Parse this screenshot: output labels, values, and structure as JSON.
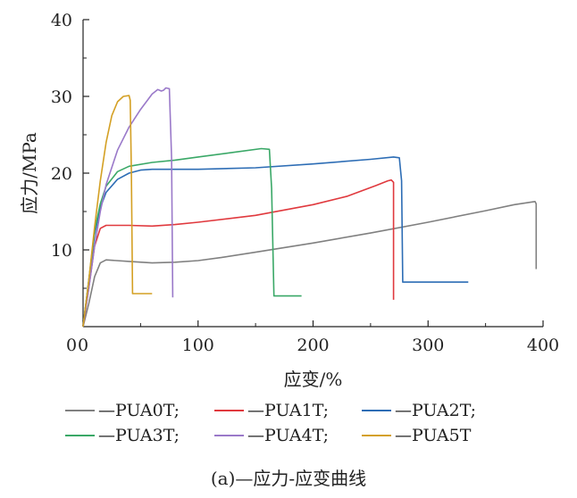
{
  "chart_data": {
    "type": "line",
    "xlabel": "应变/%",
    "ylabel": "应力/MPa",
    "xlim": [
      0,
      400
    ],
    "ylim": [
      0,
      40
    ],
    "xticks": [
      "0",
      "100",
      "200",
      "300",
      "400"
    ],
    "yticks": [
      "10",
      "20",
      "30",
      "40"
    ],
    "grid": false,
    "legend_position": "bottom",
    "caption": "(a)—应力-应变曲线",
    "series": [
      {
        "name": "—PUA0T;",
        "color": "#808080",
        "x": [
          0,
          5,
          10,
          15,
          20,
          40,
          60,
          80,
          100,
          120,
          150,
          200,
          250,
          300,
          350,
          375,
          393,
          394,
          394
        ],
        "y": [
          0,
          3,
          6.5,
          8.3,
          8.7,
          8.5,
          8.3,
          8.4,
          8.6,
          9.0,
          9.7,
          10.9,
          12.2,
          13.6,
          15.1,
          15.9,
          16.3,
          16.0,
          7.5
        ]
      },
      {
        "name": "—PUA1T;",
        "color": "#e0393e",
        "x": [
          0,
          5,
          10,
          15,
          20,
          40,
          60,
          80,
          100,
          150,
          200,
          230,
          255,
          265,
          268,
          270,
          270
        ],
        "y": [
          0,
          5,
          10.5,
          12.8,
          13.2,
          13.2,
          13.1,
          13.3,
          13.6,
          14.5,
          15.9,
          17.0,
          18.4,
          19.0,
          19.1,
          18.8,
          3.5
        ]
      },
      {
        "name": "—PUA2T;",
        "color": "#2d6db5",
        "x": [
          0,
          5,
          10,
          15,
          20,
          30,
          40,
          50,
          60,
          75,
          100,
          150,
          200,
          250,
          270,
          275,
          277,
          278,
          300,
          335
        ],
        "y": [
          0,
          6,
          12,
          15.5,
          17.5,
          19.2,
          20.0,
          20.4,
          20.5,
          20.5,
          20.5,
          20.7,
          21.2,
          21.8,
          22.1,
          22.0,
          19.0,
          5.8,
          5.8,
          5.8
        ]
      },
      {
        "name": "—PUA3T;",
        "color": "#3aa867",
        "x": [
          0,
          5,
          10,
          15,
          20,
          30,
          40,
          60,
          80,
          100,
          130,
          155,
          162,
          164,
          166,
          170,
          190
        ],
        "y": [
          0,
          6,
          12.5,
          16,
          18.3,
          20.2,
          20.9,
          21.4,
          21.7,
          22.1,
          22.7,
          23.2,
          23.1,
          18.0,
          4.0,
          4.0,
          4.0
        ]
      },
      {
        "name": "—PUA4T;",
        "color": "#9a79c9",
        "x": [
          0,
          5,
          10,
          15,
          20,
          30,
          40,
          50,
          60,
          65,
          68,
          70,
          72,
          75,
          77,
          78
        ],
        "y": [
          0,
          5,
          10.5,
          15,
          18.5,
          23,
          26,
          28.3,
          30.3,
          30.9,
          30.7,
          30.8,
          31.1,
          31.0,
          22.0,
          3.8
        ]
      },
      {
        "name": "—PUA5T",
        "color": "#d4a024",
        "x": [
          0,
          5,
          10,
          15,
          20,
          25,
          30,
          35,
          40,
          41,
          42,
          43,
          45,
          50,
          60
        ],
        "y": [
          0,
          6,
          13,
          19,
          24,
          27.5,
          29.3,
          30.0,
          30.1,
          29.5,
          20.0,
          4.3,
          4.3,
          4.3,
          4.3
        ]
      }
    ]
  }
}
